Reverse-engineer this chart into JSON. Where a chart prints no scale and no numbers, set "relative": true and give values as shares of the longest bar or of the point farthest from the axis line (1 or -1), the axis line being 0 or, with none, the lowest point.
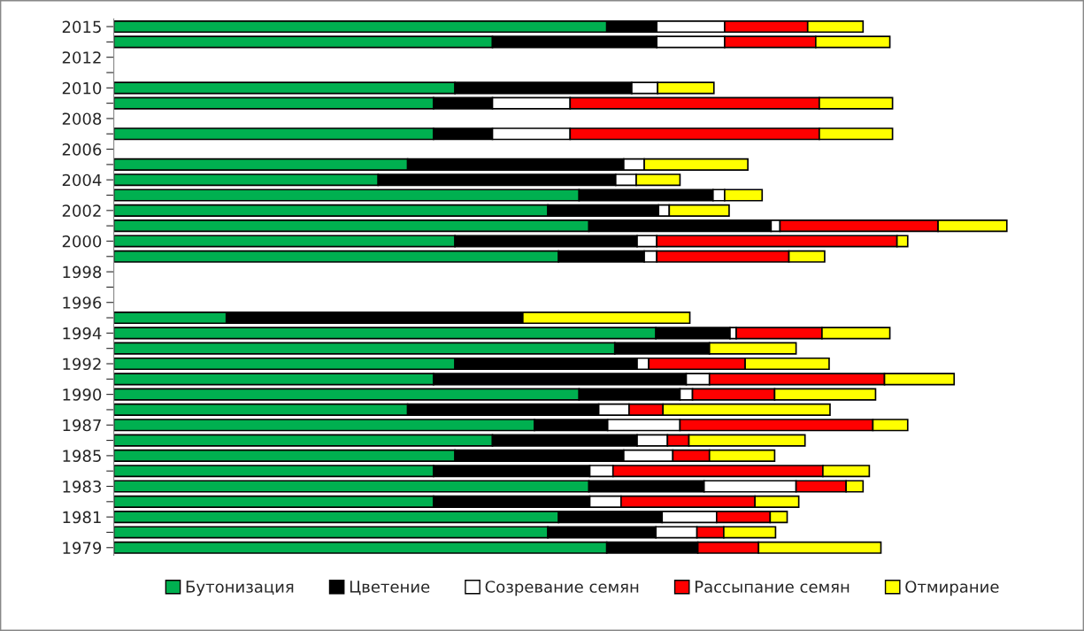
{
  "chart_data": {
    "type": "bar",
    "orientation": "horizontal",
    "stacked": true,
    "relative": true,
    "legend": "bottom",
    "grid": false,
    "categories": [
      "2015",
      null,
      "2012",
      null,
      "2010",
      null,
      "2008",
      null,
      "2006",
      null,
      "2004",
      null,
      "2002",
      null,
      "2000",
      null,
      "1998",
      null,
      "1996",
      null,
      "1994",
      null,
      "1992",
      null,
      "1990",
      null,
      "1987",
      null,
      "1985",
      null,
      "1983",
      null,
      "1981",
      null,
      "1979"
    ],
    "series": [
      {
        "name": "Бутонизация",
        "color": "#00b050",
        "values": [
          0.552,
          0.424,
          null,
          null,
          0.382,
          0.358,
          null,
          0.358,
          null,
          0.329,
          0.296,
          0.521,
          0.486,
          0.532,
          0.382,
          0.498,
          null,
          null,
          null,
          0.126,
          0.607,
          0.561,
          0.382,
          0.358,
          0.521,
          0.329,
          0.471,
          0.424,
          0.382,
          0.358,
          0.532,
          0.358,
          0.498,
          0.486,
          0.552
        ]
      },
      {
        "name": "Цветение",
        "color": "#000000",
        "values": [
          0.056,
          0.184,
          null,
          null,
          0.198,
          0.066,
          null,
          0.066,
          null,
          0.242,
          0.266,
          0.15,
          0.124,
          0.204,
          0.204,
          0.096,
          null,
          null,
          null,
          0.332,
          0.083,
          0.106,
          0.204,
          0.283,
          0.113,
          0.214,
          0.082,
          0.162,
          0.189,
          0.175,
          0.129,
          0.175,
          0.116,
          0.121,
          0.102
        ]
      },
      {
        "name": "Созревание семян",
        "color": "#ffffff",
        "values": [
          0.076,
          0.076,
          null,
          null,
          0.029,
          0.087,
          null,
          0.087,
          null,
          0.023,
          0.023,
          0.013,
          0.012,
          0.01,
          0.022,
          0.014,
          null,
          null,
          null,
          null,
          0.007,
          null,
          0.013,
          0.026,
          0.014,
          0.034,
          0.081,
          0.034,
          0.055,
          0.026,
          0.103,
          0.035,
          0.061,
          0.046,
          null
        ]
      },
      {
        "name": "Рассыпание семян",
        "color": "#ff0000",
        "values": [
          0.093,
          0.102,
          null,
          null,
          null,
          0.279,
          null,
          0.279,
          null,
          null,
          null,
          null,
          null,
          0.177,
          0.269,
          0.148,
          null,
          null,
          null,
          null,
          0.096,
          null,
          0.108,
          0.196,
          0.092,
          0.038,
          0.216,
          0.024,
          0.041,
          0.235,
          0.056,
          0.15,
          0.06,
          0.03,
          0.068
        ]
      },
      {
        "name": "Отмирание",
        "color": "#ffff00",
        "values": [
          0.062,
          0.083,
          null,
          null,
          0.063,
          0.082,
          null,
          0.082,
          null,
          0.116,
          0.049,
          0.042,
          0.067,
          0.077,
          0.012,
          0.04,
          null,
          null,
          null,
          0.187,
          0.076,
          0.097,
          0.094,
          0.078,
          0.113,
          0.187,
          0.039,
          0.13,
          0.073,
          0.052,
          0.019,
          0.049,
          0.019,
          0.058,
          0.137
        ]
      }
    ]
  }
}
